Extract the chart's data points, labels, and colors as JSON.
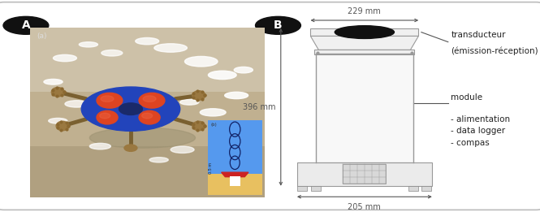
{
  "fig_width": 6.65,
  "fig_height": 2.61,
  "dpi": 100,
  "background_color": "#ffffff",
  "label_A": "A",
  "label_B": "B",
  "photo_label": "(a)",
  "dim_top_mm": "229 mm",
  "dim_height_mm": "396 mm",
  "dim_bottom_mm": "205 mm",
  "text_transducteur_1": "transducteur",
  "text_transducteur_2": "(émission-réception)",
  "text_module": "module",
  "text_alimentation": "- alimentation",
  "text_datalogger": "- data logger",
  "text_compas": "- compas",
  "line_color": "#555555",
  "body_fill": "#f8f8f8",
  "body_edge": "#999999",
  "head_fill": "#f0f0f0",
  "head_edge": "#999999",
  "base_fill": "#ebebeb",
  "base_edge": "#999999",
  "transducer_fill": "#111111",
  "photo_sand_dark": "#b8a882",
  "photo_sand_light": "#cfc0a0",
  "inset_bg": "#5599ee",
  "inset_sand": "#e8c060",
  "inset_border": "#888888"
}
